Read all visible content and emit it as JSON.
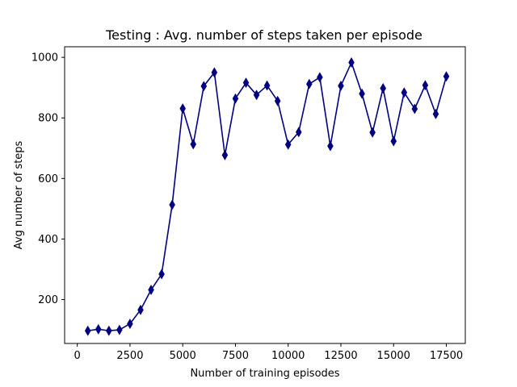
{
  "chart_data": {
    "type": "line",
    "title": "Testing : Avg. number of steps taken per episode",
    "xlabel": "Number of training episodes",
    "ylabel": "Avg number of steps",
    "xlim": [
      -600,
      18400
    ],
    "ylim": [
      55,
      1035
    ],
    "xticks": [
      0,
      2500,
      5000,
      7500,
      10000,
      12500,
      15000,
      17500
    ],
    "yticks": [
      200,
      400,
      600,
      800,
      1000
    ],
    "grid": false,
    "series": [
      {
        "color": "#000080",
        "marker": "thin-diamond",
        "x": [
          500,
          1000,
          1500,
          2000,
          2500,
          3000,
          3500,
          4000,
          4500,
          5000,
          5500,
          6000,
          6500,
          7000,
          7500,
          8000,
          8500,
          9000,
          9500,
          10000,
          10500,
          11000,
          11500,
          12000,
          12500,
          13000,
          13500,
          14000,
          14500,
          15000,
          15500,
          16000,
          16500,
          17000,
          17500
        ],
        "y": [
          97,
          102,
          97,
          100,
          120,
          166,
          232,
          284,
          513,
          831,
          713,
          905,
          950,
          677,
          864,
          916,
          876,
          907,
          856,
          712,
          753,
          912,
          934,
          707,
          906,
          983,
          880,
          752,
          898,
          723,
          884,
          830,
          908,
          813,
          937
        ]
      }
    ]
  }
}
